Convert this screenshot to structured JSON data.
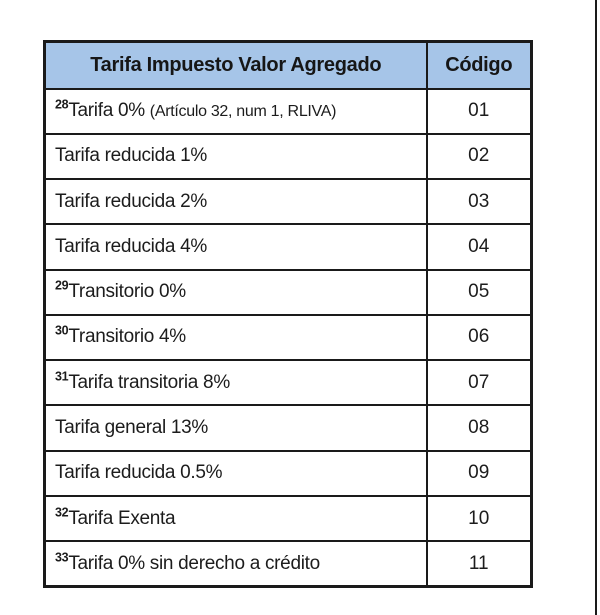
{
  "page": {
    "background_color": "#ffffff",
    "right_border_line_color": "#1a1a1a"
  },
  "table": {
    "header_bg_color": "#a6c5e8",
    "border_color": "#1a1a1a",
    "text_color": "#1c1c1c",
    "header": {
      "col1": "Tarifa Impuesto Valor Agregado",
      "col2": "Código"
    },
    "rows": [
      {
        "sup": "28",
        "label": "Tarifa 0% ",
        "note": "(Artículo 32, num 1, RLIVA)",
        "code": "01"
      },
      {
        "sup": "",
        "label": "Tarifa reducida 1%",
        "note": "",
        "code": "02"
      },
      {
        "sup": "",
        "label": "Tarifa reducida 2%",
        "note": "",
        "code": "03"
      },
      {
        "sup": "",
        "label": "Tarifa reducida 4%",
        "note": "",
        "code": "04"
      },
      {
        "sup": "29",
        "label": "Transitorio 0%",
        "note": "",
        "code": "05"
      },
      {
        "sup": "30",
        "label": "Transitorio 4%",
        "note": "",
        "code": "06"
      },
      {
        "sup": "31",
        "label": "Tarifa transitoria 8%",
        "note": "",
        "code": "07"
      },
      {
        "sup": "",
        "label": "Tarifa general 13%",
        "note": "",
        "code": "08"
      },
      {
        "sup": "",
        "label": "Tarifa reducida 0.5%",
        "note": "",
        "code": "09"
      },
      {
        "sup": "32",
        "label": "Tarifa Exenta",
        "note": "",
        "code": "10"
      },
      {
        "sup": "33",
        "label": "Tarifa 0% sin derecho a crédito",
        "note": "",
        "code": "11"
      }
    ]
  }
}
